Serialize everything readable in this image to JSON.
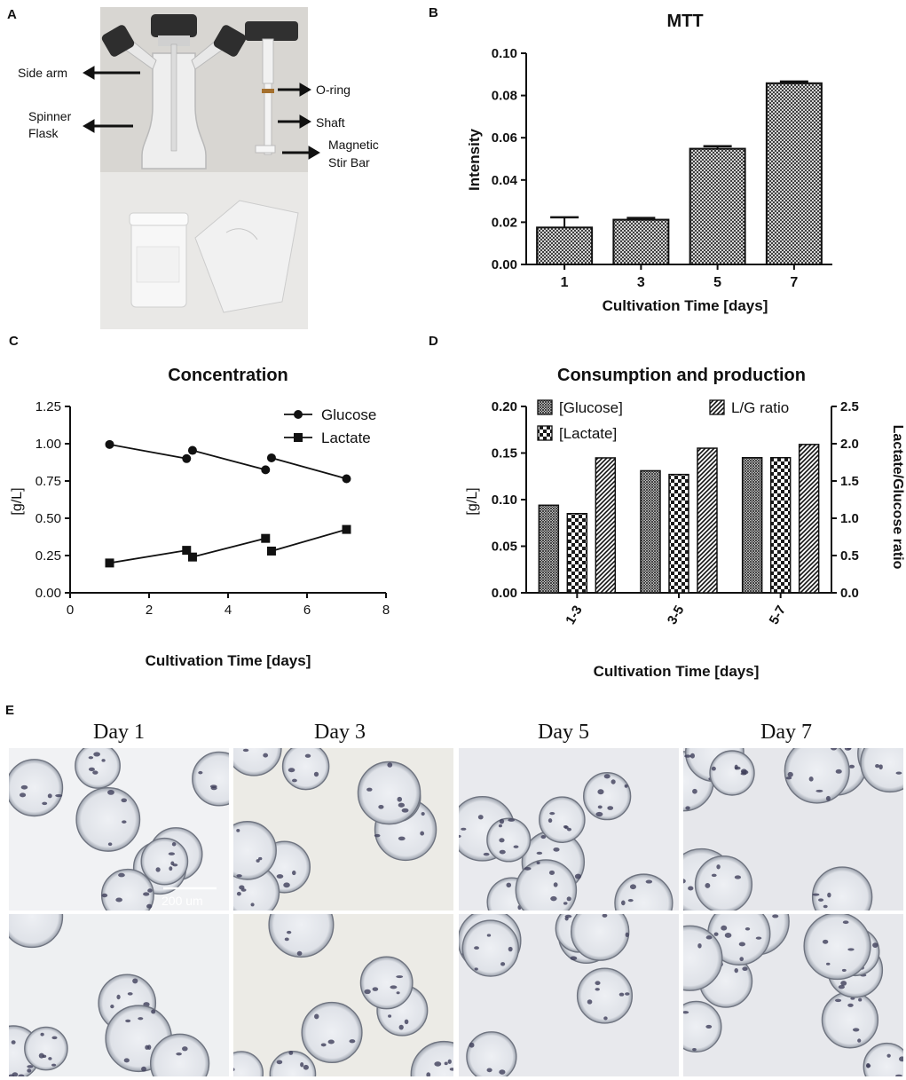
{
  "figure": {
    "panels": {
      "A": {
        "letter": "A",
        "labels": {
          "side_arm": "Side arm",
          "spinner_flask": "Spinner\nFlask",
          "o_ring": "O-ring",
          "shaft": "Shaft",
          "magnetic_stir_bar": "Magnetic\nStir Bar"
        }
      },
      "B": {
        "letter": "B"
      },
      "C": {
        "letter": "C"
      },
      "D": {
        "letter": "D"
      },
      "E": {
        "letter": "E",
        "days": [
          "Day 1",
          "Day 3",
          "Day 5",
          "Day 7"
        ],
        "scale_bar": "200 um"
      }
    }
  },
  "chart_data": [
    {
      "id": "B",
      "type": "bar",
      "title": "MTT",
      "xlabel": "Cultivation Time [days]",
      "ylabel": "Intensity",
      "categories": [
        "1",
        "3",
        "5",
        "7"
      ],
      "values": [
        0.0175,
        0.0212,
        0.0548,
        0.0858
      ],
      "errors": [
        0.0048,
        0.0008,
        0.0012,
        0.0008
      ],
      "ylim": [
        0,
        0.1
      ],
      "yticks": [
        "0.00",
        "0.02",
        "0.04",
        "0.06",
        "0.08",
        "0.10"
      ],
      "fill": "crosshatch"
    },
    {
      "id": "C",
      "type": "line",
      "title": "Concentration",
      "xlabel": "Cultivation Time [days]",
      "ylabel": "[g/L]",
      "xlim": [
        0,
        8
      ],
      "ylim": [
        0,
        1.25
      ],
      "xticks": [
        "0",
        "2",
        "4",
        "6",
        "8"
      ],
      "yticks": [
        "0.00",
        "0.25",
        "0.50",
        "0.75",
        "1.00",
        "1.25"
      ],
      "legend": "top-right",
      "series": [
        {
          "name": "Glucose",
          "marker": "circle",
          "segments": [
            [
              [
                1,
                0.995
              ],
              [
                2.95,
                0.9
              ]
            ],
            [
              [
                3.1,
                0.955
              ],
              [
                4.95,
                0.825
              ]
            ],
            [
              [
                5.1,
                0.905
              ],
              [
                7,
                0.765
              ]
            ]
          ]
        },
        {
          "name": "Lactate",
          "marker": "square",
          "segments": [
            [
              [
                1,
                0.2
              ],
              [
                2.95,
                0.285
              ]
            ],
            [
              [
                3.1,
                0.24
              ],
              [
                4.95,
                0.365
              ]
            ],
            [
              [
                5.1,
                0.28
              ],
              [
                7,
                0.425
              ]
            ]
          ]
        }
      ]
    },
    {
      "id": "D",
      "type": "bar",
      "title": "Consumption and production",
      "xlabel": "Cultivation Time [days]",
      "ylabel": "[g/L]",
      "y2label": "Lactate/Glucose ratio",
      "categories": [
        "1-3",
        "3-5",
        "5-7"
      ],
      "ylim": [
        0,
        0.2
      ],
      "y2lim": [
        0,
        2.5
      ],
      "yticks": [
        "0.00",
        "0.05",
        "0.10",
        "0.15",
        "0.20"
      ],
      "y2ticks": [
        "0.0",
        "0.5",
        "1.0",
        "1.5",
        "2.0",
        "2.5"
      ],
      "series": [
        {
          "name": "[Glucose]",
          "axis": "left",
          "values": [
            0.094,
            0.131,
            0.145
          ],
          "pattern": "fine-crosshatch"
        },
        {
          "name": "[Lactate]",
          "axis": "left",
          "values": [
            0.085,
            0.127,
            0.145
          ],
          "pattern": "checker"
        },
        {
          "name": "L/G ratio",
          "axis": "right",
          "values": [
            1.81,
            1.94,
            1.99
          ],
          "pattern": "diagonal"
        }
      ]
    }
  ]
}
